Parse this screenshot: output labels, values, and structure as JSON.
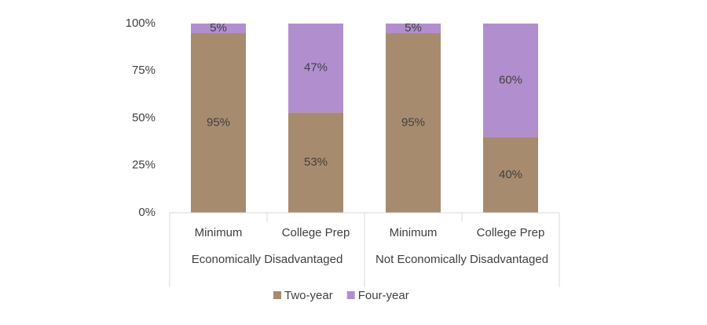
{
  "chart_data": {
    "type": "stacked-bar",
    "categories": [
      "Minimum",
      "College Prep",
      "Minimum",
      "College Prep"
    ],
    "groups": [
      "Economically Disadvantaged",
      "Not Economically Disadvantaged"
    ],
    "series": [
      {
        "name": "Two-year",
        "color": "#a78b6e",
        "values": [
          95,
          53,
          95,
          40
        ],
        "value_labels": [
          "95%",
          "53%",
          "95%",
          "40%"
        ]
      },
      {
        "name": "Four-year",
        "color": "#b18fcf",
        "values": [
          5,
          47,
          5,
          60
        ],
        "value_labels": [
          "5%",
          "47%",
          "5%",
          "60%"
        ]
      }
    ],
    "ylim": [
      0,
      100
    ],
    "yticks": [
      {
        "value": 0,
        "label": "0%"
      },
      {
        "value": 25,
        "label": "25%"
      },
      {
        "value": 50,
        "label": "50%"
      },
      {
        "value": 75,
        "label": "75%"
      },
      {
        "value": 100,
        "label": "100%"
      }
    ],
    "legend": "bottom"
  }
}
